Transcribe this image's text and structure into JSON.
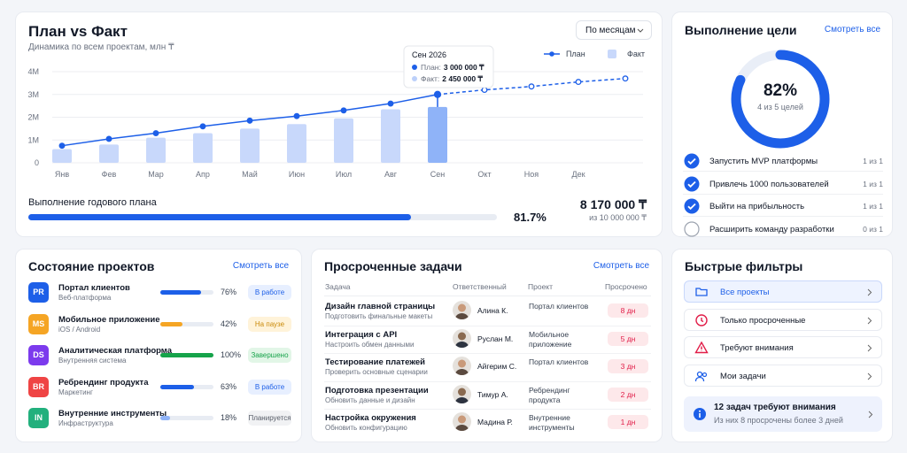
{
  "plan_fact": {
    "title": "План vs Факт",
    "subtitle": "Динамика по всем проектам, млн ₸",
    "period": "По месяцам",
    "chart_data": {
      "type": "combo",
      "categories": [
        "Янв",
        "Фев",
        "Мар",
        "Апр",
        "Май",
        "Июн",
        "Июл",
        "Авг",
        "Сен",
        "Окт",
        "Ноя",
        "Дек",
        null
      ],
      "series": [
        {
          "name": "План",
          "type": "line",
          "color": "#1d5fe8",
          "values": [
            750000,
            1050000,
            1300000,
            1600000,
            1850000,
            2050000,
            2300000,
            2600000,
            3000000,
            3200000,
            3350000,
            3550000,
            3700000
          ]
        },
        {
          "name": "Факт",
          "type": "bar",
          "color": "#c8d8fb",
          "values": [
            600000,
            800000,
            1100000,
            1300000,
            1500000,
            1700000,
            1950000,
            2350000,
            2450000,
            null,
            null,
            null,
            null
          ]
        }
      ],
      "ylim": [
        0,
        4000000
      ],
      "yticks": [
        0,
        {
          "value": 1000000,
          "label": "1M"
        },
        {
          "value": 2000000,
          "label": "2M"
        },
        {
          "value": 3000000,
          "label": "3M"
        },
        {
          "value": 4000000,
          "label": "4M"
        }
      ],
      "grid": true,
      "tooltip": {
        "title": "Сен 2026",
        "rows": [
          {
            "label": "План:",
            "value": "3 000 000 ₸"
          },
          {
            "label": "Факт:",
            "value": "2 450 000 ₸"
          }
        ]
      }
    },
    "annual": {
      "label": "Выполнение годового плана",
      "percent": 81.7,
      "percent_label": "81.7%",
      "amount": "8 170 000 ₸",
      "total": "из 10 000 000 ₸"
    }
  },
  "goals": {
    "title": "Выполнение цели",
    "link": "Смотреть все",
    "percent": 82,
    "percent_label": "82%",
    "caption": "4 из 5 целей",
    "items": [
      {
        "label": "Запустить MVP платформы",
        "count": "1 из 1",
        "done": true
      },
      {
        "label": "Привлечь 1000 пользователей",
        "count": "1 из 1",
        "done": true
      },
      {
        "label": "Выйти на прибыльность",
        "count": "1 из 1",
        "done": true
      },
      {
        "label": "Расширить команду разработки",
        "count": "0 из 1",
        "done": false
      }
    ]
  },
  "projects": {
    "title": "Состояние проектов",
    "link": "Смотреть все",
    "rows": [
      {
        "initials": "PR",
        "color": "#1d5fe8",
        "name": "Портал клиентов",
        "sub": "Веб-платформа",
        "progress": 76,
        "progress_label": "76%",
        "bar_color": "#1d5fe8",
        "status": "В работе",
        "status_bg": "#e7efff",
        "status_fg": "#1d5fe8"
      },
      {
        "initials": "MS",
        "color": "#f5a524",
        "name": "Мобильное приложение",
        "sub": "iOS / Android",
        "progress": 42,
        "progress_label": "42%",
        "bar_color": "#f5a524",
        "status": "На паузе",
        "status_bg": "#fff3d9",
        "status_fg": "#c98a0a"
      },
      {
        "initials": "DS",
        "color": "#7c3aed",
        "name": "Аналитическая платформа",
        "sub": "Внутренняя система",
        "progress": 100,
        "progress_label": "100%",
        "bar_color": "#16a34a",
        "status": "Завершено",
        "status_bg": "#e2f6e7",
        "status_fg": "#16a34a"
      },
      {
        "initials": "BR",
        "color": "#ef4444",
        "name": "Ребрендинг продукта",
        "sub": "Маркетинг",
        "progress": 63,
        "progress_label": "63%",
        "bar_color": "#1d5fe8",
        "status": "В работе",
        "status_bg": "#e7efff",
        "status_fg": "#1d5fe8"
      },
      {
        "initials": "IN",
        "color": "#22b07d",
        "name": "Внутренние инструменты",
        "sub": "Инфраструктура",
        "progress": 18,
        "progress_label": "18%",
        "bar_color": "#8fb3f8",
        "status": "Планируется",
        "status_bg": "#f1f2f4",
        "status_fg": "#555b66"
      }
    ]
  },
  "tasks": {
    "title": "Просроченные задачи",
    "link": "Смотреть все",
    "columns": [
      "Задача",
      "Ответственный",
      "Проект",
      "Просрочено"
    ],
    "rows": [
      {
        "title": "Дизайн главной страницы",
        "sub": "Подготовить финальные макеты",
        "person": "Алина К.",
        "project": "Портал клиентов",
        "overdue": "8 дн"
      },
      {
        "title": "Интеграция с API",
        "sub": "Настроить обмен данными",
        "person": "Руслан М.",
        "project": "Мобильное приложение",
        "overdue": "5 дн"
      },
      {
        "title": "Тестирование платежей",
        "sub": "Проверить основные сценарии",
        "person": "Айгерим С.",
        "project": "Портал клиентов",
        "overdue": "3 дн"
      },
      {
        "title": "Подготовка презентации",
        "sub": "Обновить данные и дизайн",
        "person": "Тимур А.",
        "project": "Ребрендинг продукта",
        "overdue": "2 дн"
      },
      {
        "title": "Настройка окружения",
        "sub": "Обновить конфигурацию",
        "person": "Мадина Р.",
        "project": "Внутренние инструменты",
        "overdue": "1 дн"
      }
    ]
  },
  "filters": {
    "title": "Быстрые фильтры",
    "items": [
      "Все проекты",
      "Только просроченные",
      "Требуют внимания",
      "Мои задачи"
    ],
    "notice": {
      "title": "12 задач требуют внимания",
      "text": "Из них 8 просрочены более 3 дней"
    }
  }
}
